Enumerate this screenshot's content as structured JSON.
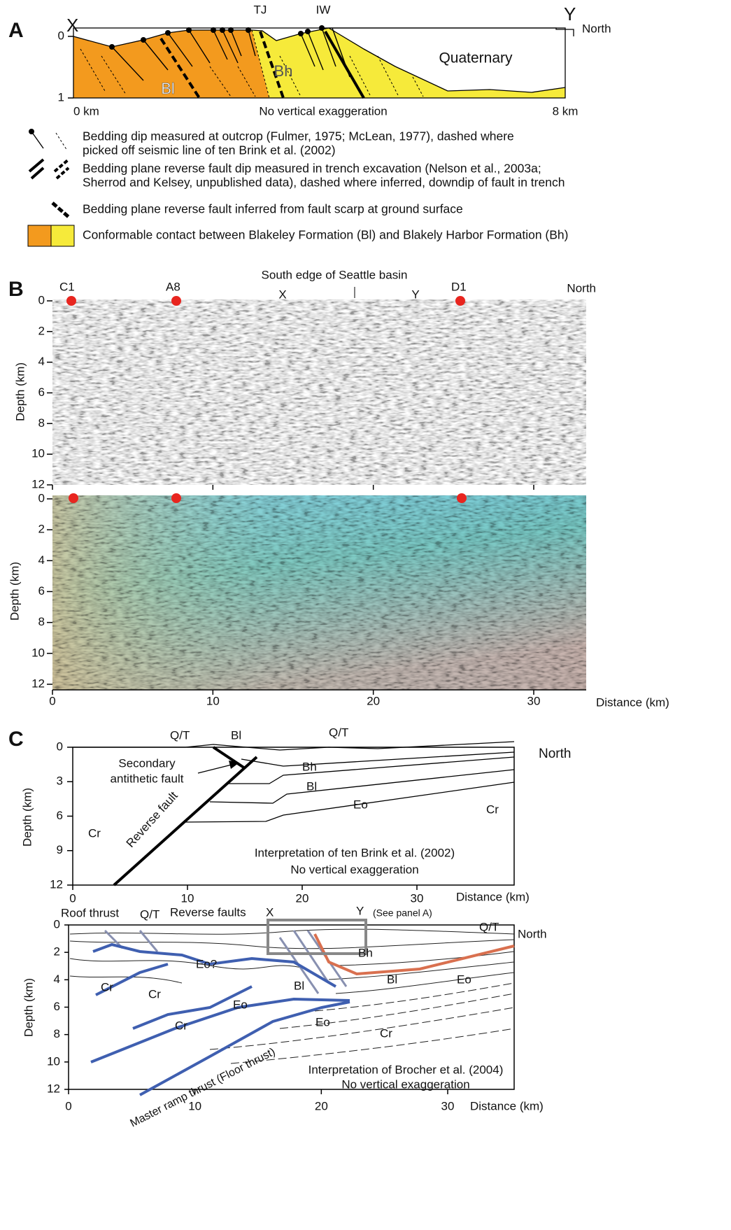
{
  "panel_a": {
    "letter": "A",
    "labels": {
      "x": "X",
      "y": "Y",
      "north": "North",
      "tj": "TJ",
      "iw": "IW",
      "bl": "Bl",
      "bh": "Bh",
      "quaternary": "Quaternary"
    },
    "depth_ticks": [
      0,
      1
    ],
    "scale_start": "0 km",
    "scale_note": "No vertical exaggeration",
    "scale_end": "8 km",
    "legend": [
      [
        "Bedding dip measured at outcrop (Fulmer, 1975; McLean, 1977), dashed where",
        "picked off seismic line of ten Brink et al. (2002)"
      ],
      [
        "Bedding plane reverse fault dip measured in trench excavation (Nelson et al., 2003a;",
        "Sherrod and Kelsey, unpublished data), dashed where inferred, downdip of fault in trench"
      ],
      [
        "Bedding plane reverse fault inferred from fault scarp at ground surface"
      ],
      [
        "Conformable contact between Blakeley Formation (Bl) and Blakely Harbor Formation (Bh)"
      ]
    ]
  },
  "panel_b": {
    "letter": "B",
    "title": "South edge of Seattle basin",
    "labels": {
      "c1": "C1",
      "a8": "A8",
      "x": "X",
      "y": "Y",
      "d1": "D1",
      "north": "North"
    },
    "y_label": "Depth (km)",
    "yticks": [
      0,
      2,
      4,
      6,
      8,
      10,
      12
    ],
    "xticks": [
      0,
      10,
      20,
      30
    ],
    "x_label": "Distance (km)"
  },
  "panel_c": {
    "letter": "C",
    "upper": {
      "labels": [
        "Q/T",
        "Bl",
        "Q/T",
        "North",
        "Bh",
        "Bl",
        "Eo",
        "Cr",
        "Cr"
      ],
      "secondary_fault": [
        "Secondary",
        "antithetic fault"
      ],
      "reverse_fault": "Reverse fault",
      "caption": [
        "Interpretation of ten Brink et al. (2002)",
        "No vertical exaggeration"
      ],
      "y_label": "Depth (km)",
      "yticks": [
        0,
        3,
        6,
        9,
        12
      ],
      "xticks": [
        0,
        10,
        20,
        30
      ],
      "x_label": "Distance (km)"
    },
    "lower": {
      "labels": [
        "Roof thrust",
        "Q/T",
        "Reverse faults",
        "X",
        "Y",
        "(See panel A)",
        "Q/T",
        "North",
        "Eo?",
        "Bh",
        "Cr",
        "Cr",
        "Bl",
        "Bl",
        "Eo",
        "Eo",
        "Eo",
        "Cr",
        "Cr"
      ],
      "master_thrust": "Master ramp thrust (Floor thrust)",
      "caption": [
        "Interpretation of Brocher et al. (2004)",
        "No vertical exaggeration"
      ],
      "y_label": "Depth (km)",
      "yticks": [
        0,
        2,
        4,
        6,
        8,
        10,
        12
      ],
      "xticks": [
        0,
        10,
        20,
        30
      ],
      "x_label": "Distance (km)"
    }
  }
}
